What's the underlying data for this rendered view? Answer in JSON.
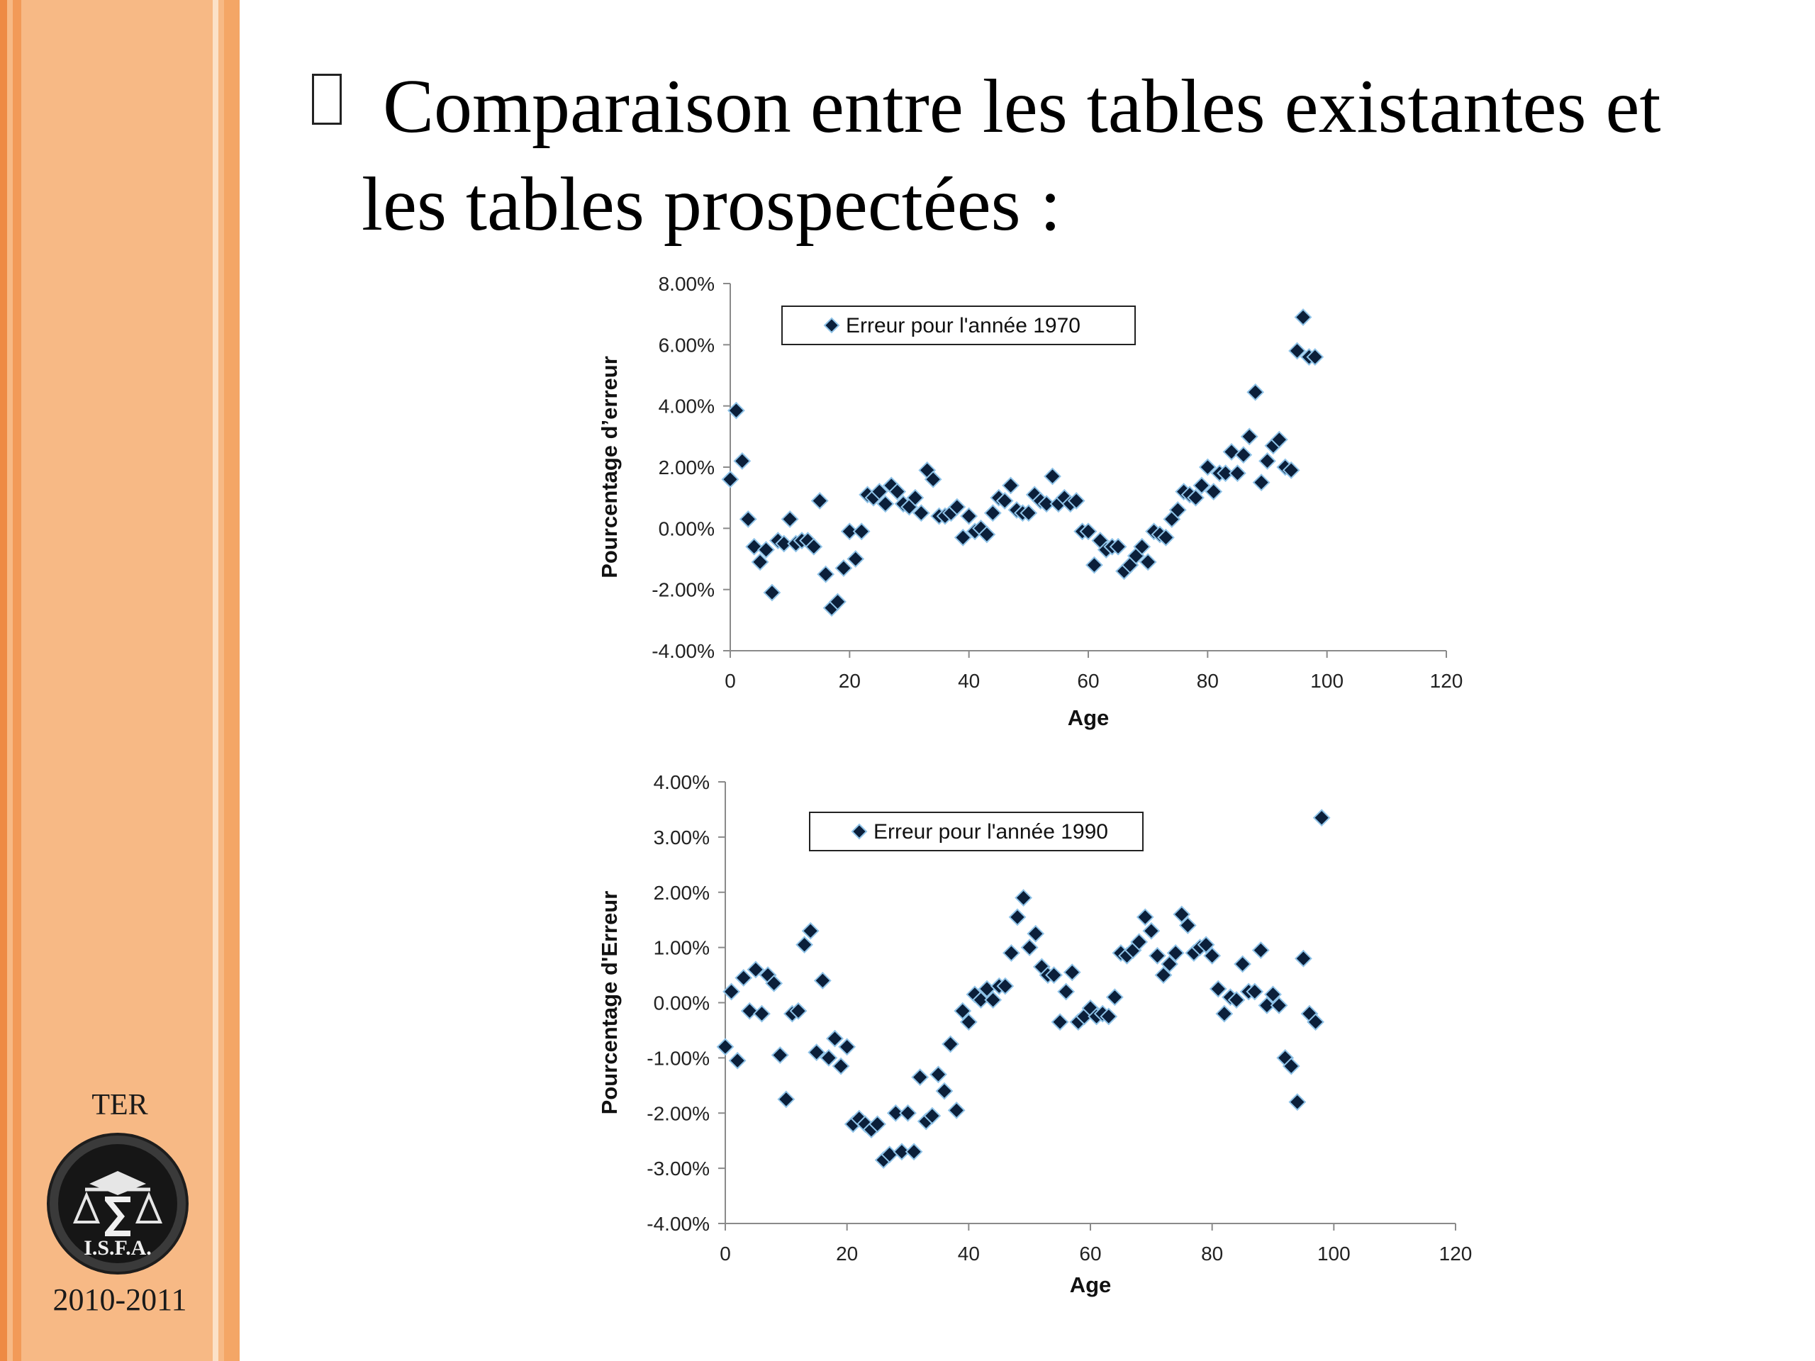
{
  "slide": {
    "title_line1": "Comparaison entre les tables existantes et",
    "title_line2": "les tables prospectées :"
  },
  "sidebar": {
    "label": "TER",
    "logo_text": "I.S.F.A.",
    "years": "2010-2011"
  },
  "colors": {
    "marker_fill": "#0b1f3a",
    "marker_stroke": "#8fc3e8",
    "sidebar_bg": "#f7b985",
    "sidebar_stripe": "#ee8a44"
  },
  "chart_data": [
    {
      "type": "scatter",
      "xlabel": "Age",
      "ylabel": "Pourcentage d’erreur",
      "xlim": [
        0,
        120
      ],
      "ylim": [
        -4,
        8
      ],
      "xticks": [
        0,
        20,
        40,
        60,
        80,
        100,
        120
      ],
      "yticks": [
        -4,
        -2,
        0,
        2,
        4,
        6,
        8
      ],
      "ytick_labels": [
        "-4.00%",
        "-2.00%",
        "0.00%",
        "2.00%",
        "4.00%",
        "6.00%",
        "8.00%"
      ],
      "legend_position": "top-center",
      "grid": false,
      "series": [
        {
          "name": "Erreur pour l'année 1970",
          "x": [
            0,
            1,
            2,
            3,
            4,
            5,
            6,
            7,
            8,
            9,
            10,
            11,
            12,
            13,
            14,
            15,
            16,
            17,
            18,
            19,
            20,
            21,
            22,
            23,
            24,
            25,
            26,
            27,
            28,
            29,
            30,
            31,
            32,
            33,
            34,
            35,
            36,
            37,
            38,
            39,
            40,
            41,
            42,
            43,
            44,
            45,
            46,
            47,
            48,
            49,
            50,
            51,
            52,
            53,
            54,
            55,
            56,
            57,
            58,
            59,
            60,
            61,
            62,
            63,
            64,
            65,
            66,
            67,
            68,
            69,
            70,
            71,
            72,
            73,
            74,
            75,
            76,
            77,
            78,
            79,
            80,
            81,
            82,
            83,
            84,
            85,
            86,
            87,
            88,
            89,
            90,
            91,
            92,
            93,
            94,
            95,
            96,
            97,
            98
          ],
          "y": [
            1.6,
            3.85,
            2.2,
            0.3,
            -0.6,
            -1.1,
            -0.7,
            -2.1,
            -0.4,
            -0.5,
            0.3,
            -0.5,
            -0.4,
            -0.4,
            -0.6,
            0.9,
            -1.5,
            -2.6,
            -2.4,
            -1.3,
            -0.1,
            -1.0,
            -0.1,
            1.1,
            1.0,
            1.2,
            0.8,
            1.4,
            1.2,
            0.8,
            0.7,
            1.0,
            0.5,
            1.9,
            1.6,
            0.4,
            0.4,
            0.5,
            0.7,
            -0.3,
            0.4,
            -0.1,
            0.0,
            -0.2,
            0.5,
            1.0,
            0.9,
            1.4,
            0.6,
            0.5,
            0.5,
            1.1,
            0.9,
            0.8,
            1.7,
            0.8,
            1.0,
            0.8,
            0.9,
            -0.1,
            -0.1,
            -1.2,
            -0.4,
            -0.7,
            -0.6,
            -0.6,
            -1.4,
            -1.2,
            -0.9,
            -0.6,
            -1.1,
            -0.1,
            -0.2,
            -0.3,
            0.3,
            0.6,
            1.2,
            1.1,
            1.0,
            1.4,
            2.0,
            1.2,
            1.8,
            1.8,
            2.5,
            1.8,
            2.4,
            3.0,
            4.45,
            1.5,
            2.2,
            2.7,
            2.9,
            2.0,
            1.9,
            5.8,
            6.9,
            5.6,
            5.6
          ]
        }
      ]
    },
    {
      "type": "scatter",
      "xlabel": "Age",
      "ylabel": "Pourcentage d'Erreur",
      "xlim": [
        0,
        120
      ],
      "ylim": [
        -4,
        4
      ],
      "xticks": [
        0,
        20,
        40,
        60,
        80,
        100,
        120
      ],
      "yticks": [
        -4,
        -3,
        -2,
        -1,
        0,
        1,
        2,
        3,
        4
      ],
      "ytick_labels": [
        "-4.00%",
        "-3.00%",
        "-2.00%",
        "-1.00%",
        "0.00%",
        "1.00%",
        "2.00%",
        "3.00%",
        "4.00%"
      ],
      "legend_position": "top-center",
      "grid": false,
      "series": [
        {
          "name": "Erreur pour l'année 1990",
          "x": [
            0,
            1,
            2,
            3,
            4,
            5,
            6,
            7,
            8,
            9,
            10,
            11,
            12,
            13,
            14,
            15,
            16,
            17,
            18,
            19,
            20,
            21,
            22,
            23,
            24,
            25,
            26,
            27,
            28,
            29,
            30,
            31,
            32,
            33,
            34,
            35,
            36,
            37,
            38,
            39,
            40,
            41,
            42,
            43,
            44,
            45,
            46,
            47,
            48,
            49,
            50,
            51,
            52,
            53,
            54,
            55,
            56,
            57,
            58,
            59,
            60,
            61,
            62,
            63,
            64,
            65,
            66,
            67,
            68,
            69,
            70,
            71,
            72,
            73,
            74,
            75,
            76,
            77,
            78,
            79,
            80,
            81,
            82,
            83,
            84,
            85,
            86,
            87,
            88,
            89,
            90,
            91,
            92,
            93,
            94,
            95,
            96,
            97,
            98
          ],
          "y": [
            -0.8,
            0.2,
            -1.05,
            0.45,
            -0.15,
            0.6,
            -0.2,
            0.5,
            0.35,
            -0.95,
            -1.75,
            -0.2,
            -0.15,
            1.05,
            1.3,
            -0.9,
            0.4,
            -1.0,
            -0.65,
            -1.15,
            -0.8,
            -2.2,
            -2.1,
            -2.2,
            -2.3,
            -2.2,
            -2.85,
            -2.75,
            -2.0,
            -2.7,
            -2.0,
            -2.7,
            -1.35,
            -2.15,
            -2.05,
            -1.3,
            -1.6,
            -0.75,
            -1.95,
            -0.15,
            -0.35,
            0.15,
            0.05,
            0.25,
            0.05,
            0.3,
            0.3,
            0.9,
            1.55,
            1.9,
            1.0,
            1.25,
            0.65,
            0.5,
            0.5,
            -0.35,
            0.2,
            0.55,
            -0.35,
            -0.25,
            -0.1,
            -0.25,
            -0.2,
            -0.25,
            0.1,
            0.9,
            0.85,
            0.95,
            1.1,
            1.55,
            1.3,
            0.85,
            0.5,
            0.7,
            0.9,
            1.6,
            1.4,
            0.9,
            1.0,
            1.05,
            0.85,
            0.25,
            -0.2,
            0.1,
            0.05,
            0.7,
            0.2,
            0.2,
            0.95,
            -0.05,
            0.15,
            -0.05,
            -1.0,
            -1.15,
            -1.8,
            0.8,
            -0.2,
            -0.35,
            3.35
          ]
        }
      ]
    }
  ]
}
